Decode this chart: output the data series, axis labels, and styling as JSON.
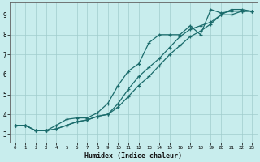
{
  "title": "",
  "xlabel": "Humidex (Indice chaleur)",
  "bg_color": "#c8eded",
  "grid_color": "#a0cccc",
  "line_color": "#1a6b6b",
  "xlim": [
    -0.5,
    23.5
  ],
  "ylim": [
    2.6,
    9.6
  ],
  "xticks": [
    0,
    1,
    2,
    3,
    4,
    5,
    6,
    7,
    8,
    9,
    10,
    11,
    12,
    13,
    14,
    15,
    16,
    17,
    18,
    19,
    20,
    21,
    22,
    23
  ],
  "yticks": [
    3,
    4,
    5,
    6,
    7,
    8,
    9
  ],
  "line1_x": [
    0,
    1,
    2,
    3,
    4,
    5,
    6,
    7,
    8,
    9,
    10,
    11,
    12,
    13,
    14,
    15,
    16,
    17,
    18,
    19,
    20,
    21,
    22,
    23
  ],
  "line1_y": [
    3.45,
    3.45,
    3.18,
    3.18,
    3.45,
    3.75,
    3.82,
    3.82,
    4.08,
    4.55,
    5.45,
    6.18,
    6.54,
    7.6,
    8.0,
    8.0,
    8.0,
    8.45,
    8.0,
    9.27,
    9.09,
    9.18,
    9.18,
    9.18
  ],
  "line2_x": [
    0,
    1,
    2,
    3,
    4,
    5,
    6,
    7,
    8,
    9,
    10,
    11,
    12,
    13,
    14,
    15,
    16,
    17,
    18,
    19,
    20,
    21,
    22,
    23
  ],
  "line2_y": [
    3.45,
    3.45,
    3.18,
    3.18,
    3.27,
    3.45,
    3.63,
    3.72,
    3.9,
    4.0,
    4.54,
    5.27,
    5.9,
    6.36,
    6.81,
    7.36,
    7.9,
    8.27,
    8.45,
    8.63,
    9.0,
    9.27,
    9.27,
    9.18
  ],
  "line3_x": [
    0,
    1,
    2,
    3,
    4,
    5,
    6,
    7,
    8,
    9,
    10,
    11,
    12,
    13,
    14,
    15,
    16,
    17,
    18,
    19,
    20,
    21,
    22,
    23
  ],
  "line3_y": [
    3.45,
    3.45,
    3.18,
    3.18,
    3.27,
    3.45,
    3.63,
    3.72,
    3.9,
    4.0,
    4.36,
    4.9,
    5.45,
    5.9,
    6.45,
    7.0,
    7.45,
    7.9,
    8.18,
    8.54,
    9.0,
    9.0,
    9.18,
    9.18
  ]
}
